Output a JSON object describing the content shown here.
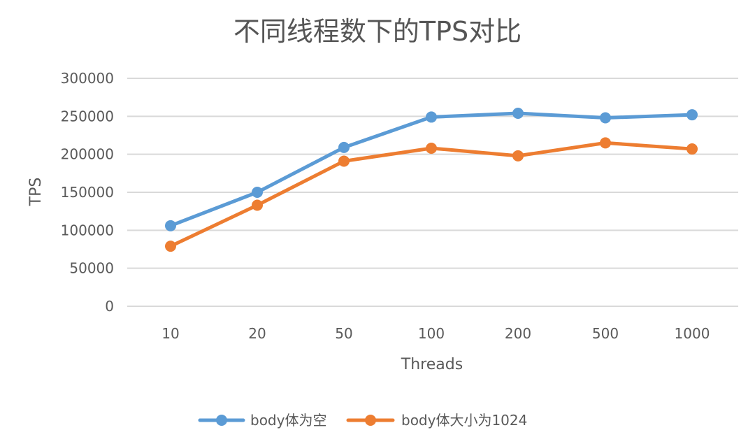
{
  "chart_data": {
    "type": "line",
    "title": "不同线程数下的TPS对比",
    "xlabel": "Threads",
    "ylabel": "TPS",
    "categories": [
      "10",
      "20",
      "50",
      "100",
      "200",
      "500",
      "1000"
    ],
    "ylim": [
      0,
      300000
    ],
    "yticks": [
      0,
      50000,
      100000,
      150000,
      200000,
      250000,
      300000
    ],
    "grid": true,
    "legend_position": "bottom",
    "series": [
      {
        "name": "body体为空",
        "color": "#5b9bd5",
        "values": [
          106000,
          150000,
          209000,
          249000,
          254000,
          248000,
          252000
        ]
      },
      {
        "name": "body体大小为1024",
        "color": "#ed7d31",
        "values": [
          79000,
          133000,
          191000,
          208000,
          198000,
          215000,
          207000
        ]
      }
    ]
  }
}
